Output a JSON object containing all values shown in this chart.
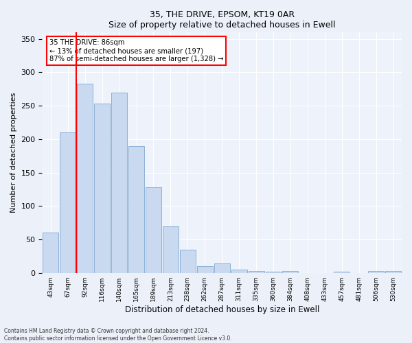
{
  "title": "35, THE DRIVE, EPSOM, KT19 0AR",
  "subtitle": "Size of property relative to detached houses in Ewell",
  "xlabel": "Distribution of detached houses by size in Ewell",
  "ylabel": "Number of detached properties",
  "categories": [
    "43sqm",
    "67sqm",
    "92sqm",
    "116sqm",
    "140sqm",
    "165sqm",
    "189sqm",
    "213sqm",
    "238sqm",
    "262sqm",
    "287sqm",
    "311sqm",
    "335sqm",
    "360sqm",
    "384sqm",
    "408sqm",
    "433sqm",
    "457sqm",
    "481sqm",
    "506sqm",
    "530sqm"
  ],
  "values": [
    60,
    210,
    283,
    253,
    270,
    190,
    128,
    70,
    35,
    10,
    14,
    5,
    3,
    2,
    3,
    0,
    0,
    2,
    0,
    3,
    3
  ],
  "bar_color": "#c9d9ef",
  "bar_edge_color": "#7fa8d1",
  "red_line_index": 1.5,
  "annotation_line1": "35 THE DRIVE: 86sqm",
  "annotation_line2": "← 13% of detached houses are smaller (197)",
  "annotation_line3": "87% of semi-detached houses are larger (1,328) →",
  "ylim": [
    0,
    360
  ],
  "yticks": [
    0,
    50,
    100,
    150,
    200,
    250,
    300,
    350
  ],
  "bg_color": "#ecf1f9",
  "plot_bg": "#eef3fb",
  "footnote1": "Contains HM Land Registry data © Crown copyright and database right 2024.",
  "footnote2": "Contains public sector information licensed under the Open Government Licence v3.0."
}
